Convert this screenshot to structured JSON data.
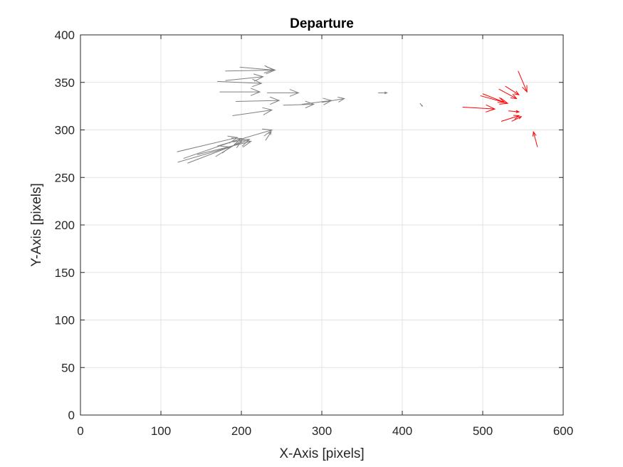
{
  "chart_data": {
    "type": "quiver",
    "title": "Departure",
    "xlabel": "X-Axis [pixels]",
    "ylabel": "Y-Axis [pixels]",
    "xlim": [
      0,
      600
    ],
    "ylim": [
      0,
      400
    ],
    "xticks": [
      0,
      100,
      200,
      300,
      400,
      500,
      600
    ],
    "yticks": [
      0,
      50,
      100,
      150,
      200,
      250,
      300,
      350,
      400
    ],
    "grid": true,
    "colors": {
      "gray": "#7f7f7f",
      "red": "#ff0000",
      "grid": "#e3e3e3",
      "axis": "#262626"
    },
    "series": [
      {
        "color": "gray",
        "vectors": [
          [
            180,
            362,
            242,
            363
          ],
          [
            198,
            366,
            240,
            363
          ],
          [
            180,
            352,
            227,
            356
          ],
          [
            170,
            351,
            225,
            349
          ],
          [
            173,
            340,
            223,
            340
          ],
          [
            232,
            339,
            271,
            339
          ],
          [
            193,
            330,
            247,
            331
          ],
          [
            252,
            326,
            290,
            327
          ],
          [
            275,
            327,
            312,
            331
          ],
          [
            300,
            329,
            328,
            333
          ],
          [
            370,
            339,
            381,
            339
          ],
          [
            422,
            328,
            425,
            325
          ],
          [
            189,
            315,
            238,
            321
          ],
          [
            120,
            277,
            195,
            292
          ],
          [
            128,
            270,
            200,
            291
          ],
          [
            133,
            265,
            210,
            290
          ],
          [
            145,
            274,
            212,
            288
          ],
          [
            168,
            272,
            201,
            289
          ],
          [
            121,
            266,
            186,
            282
          ],
          [
            170,
            283,
            238,
            300
          ],
          [
            230,
            289,
            237,
            298
          ]
        ]
      },
      {
        "color": "red",
        "vectors": [
          [
            475,
            324,
            515,
            322
          ],
          [
            500,
            338,
            527,
            329
          ],
          [
            497,
            336,
            531,
            328
          ],
          [
            520,
            343,
            542,
            333
          ],
          [
            528,
            346,
            545,
            337
          ],
          [
            544,
            362,
            555,
            340
          ],
          [
            532,
            320,
            545,
            319
          ],
          [
            523,
            309,
            545,
            315
          ],
          [
            536,
            309,
            548,
            314
          ],
          [
            568,
            282,
            563,
            298
          ]
        ]
      }
    ]
  }
}
